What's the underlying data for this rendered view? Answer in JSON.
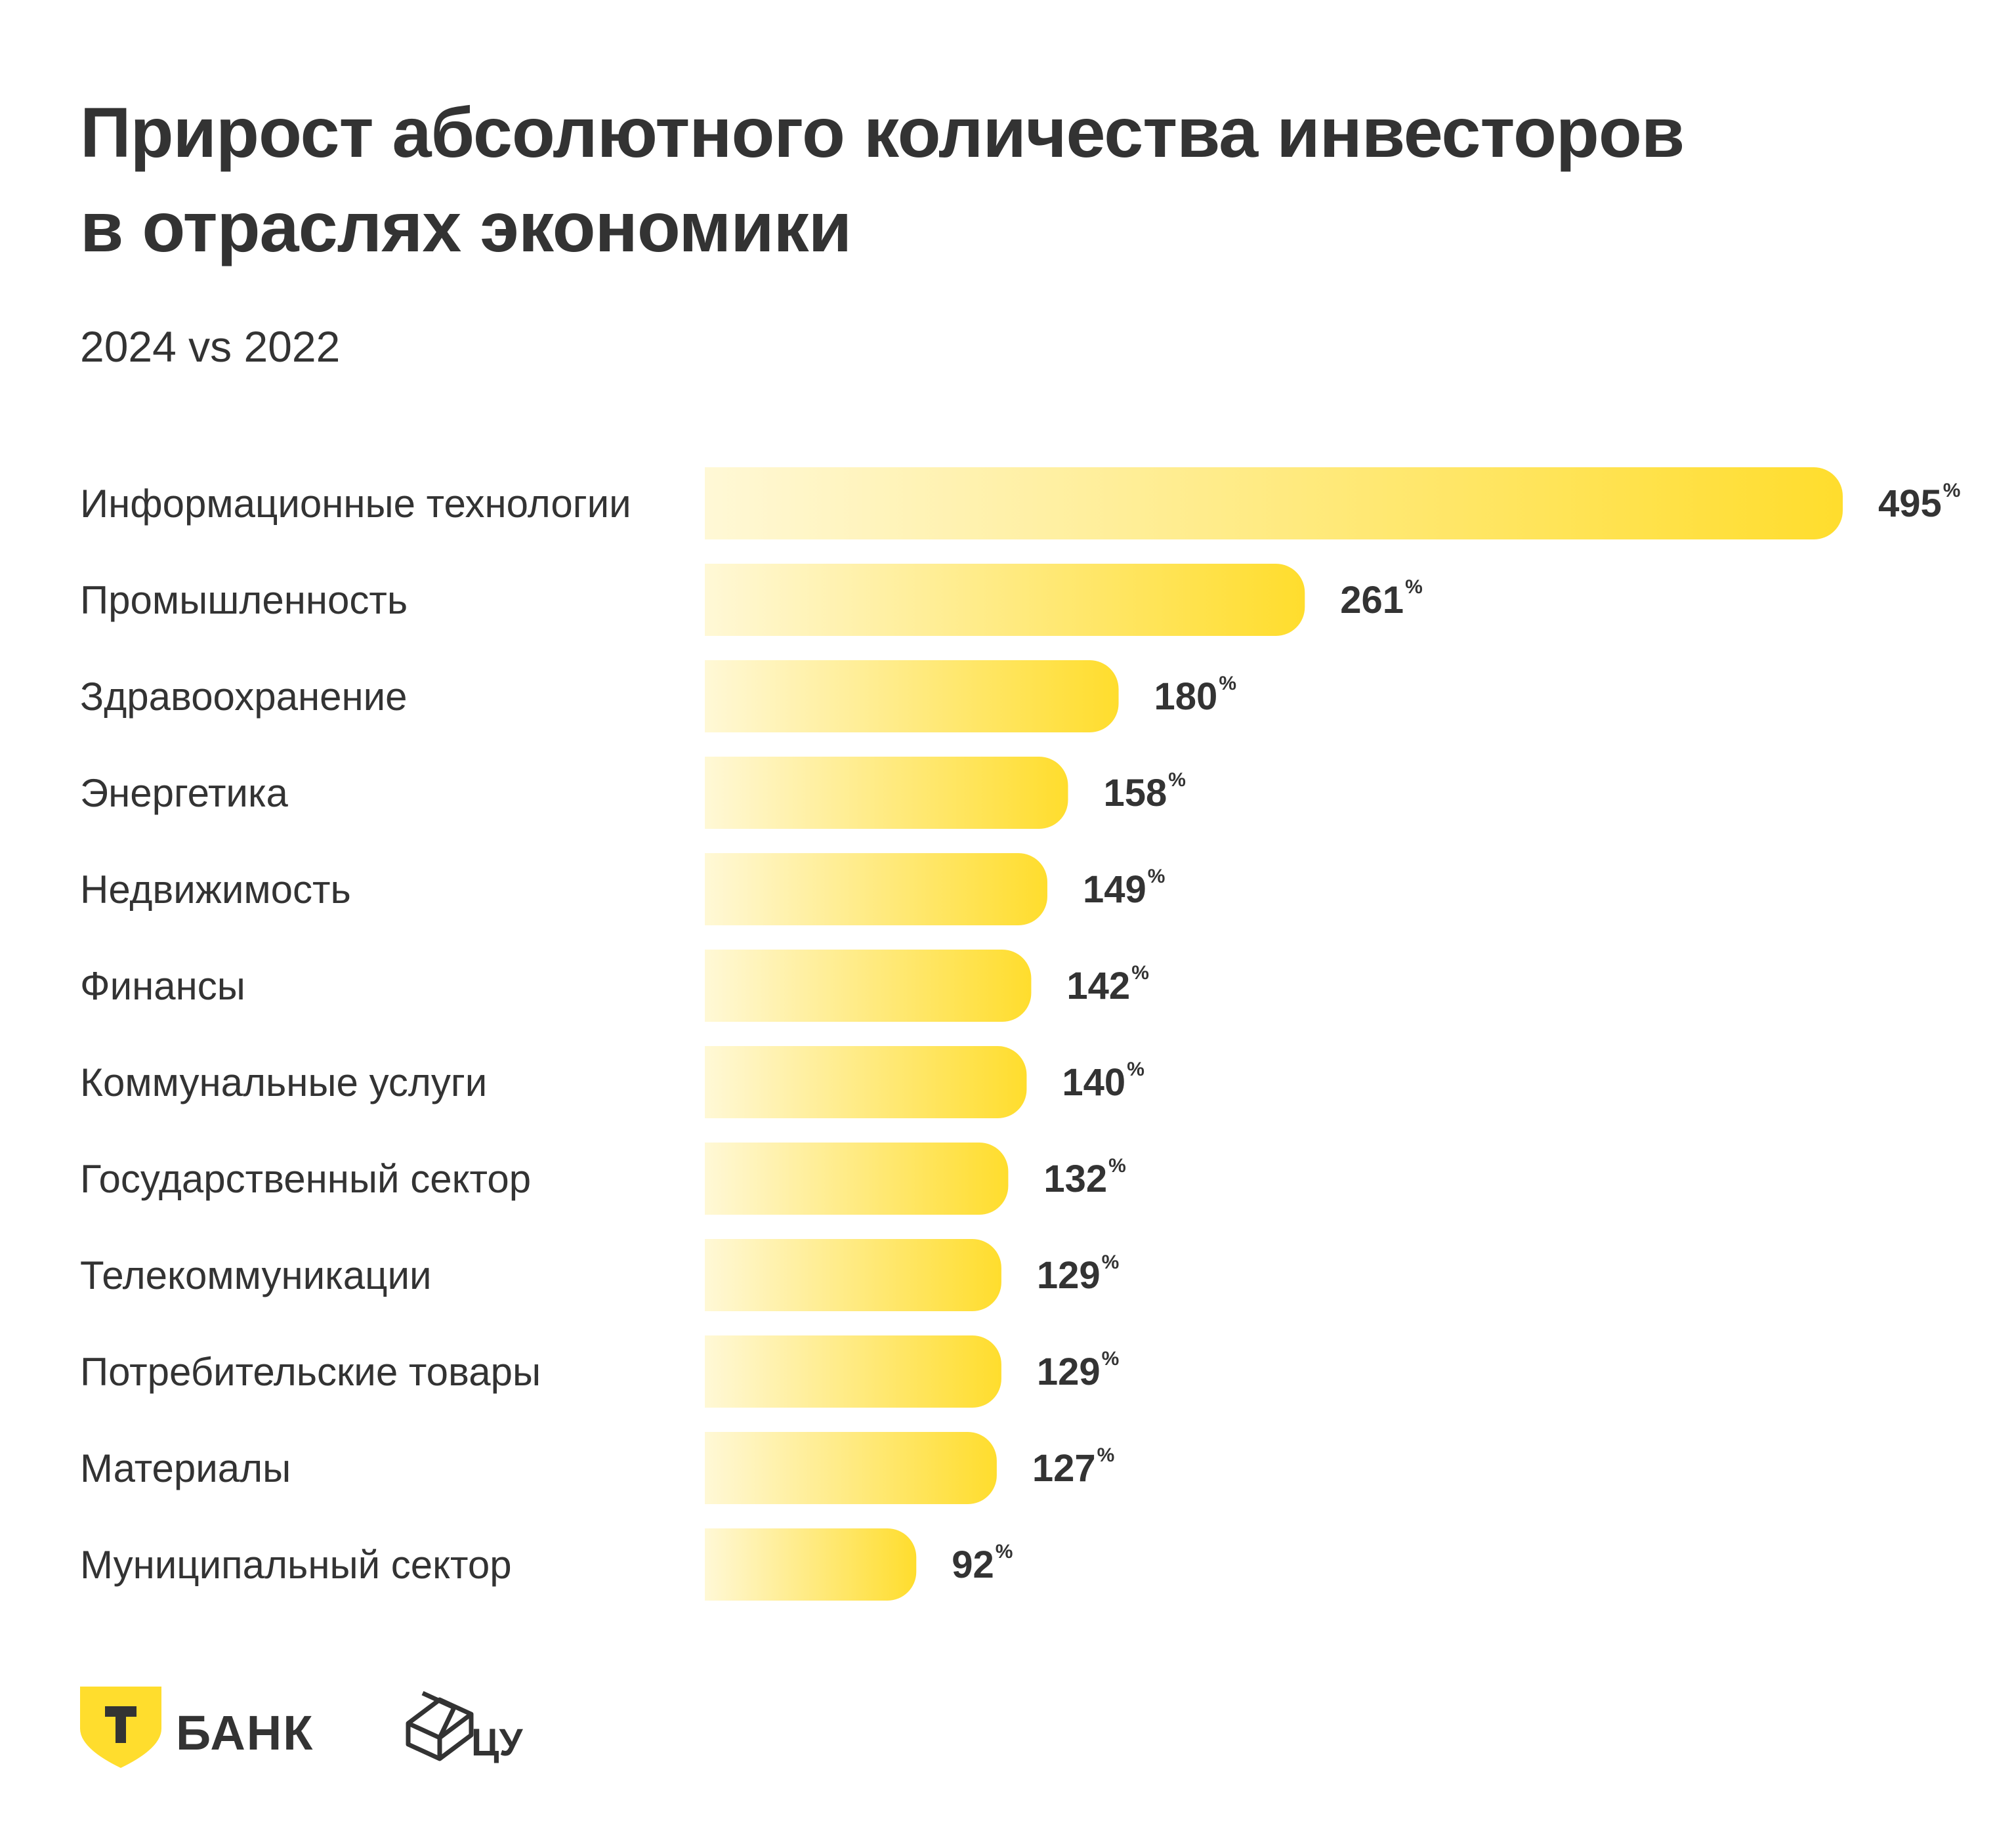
{
  "title_lines": [
    "Прирост абсолютного количества инвесторов",
    "в отраслях экономики"
  ],
  "subtitle": "2024 vs 2022",
  "colors": {
    "bar_start": "#FFF8D6",
    "bar_end": "#FFDD2D",
    "text": "#333333",
    "logo_shield": "#FFDD2D"
  },
  "chart_data": {
    "type": "bar",
    "orientation": "horizontal",
    "categories": [
      "Информационные технологии",
      "Промышленность",
      "Здравоохранение",
      "Энергетика",
      "Недвижимость",
      "Финансы",
      "Коммунальные услуги",
      " Государственный сектор",
      "Телекоммуникации",
      "Потребительские товары",
      "Материалы",
      "Муниципальный сектор"
    ],
    "values": [
      495,
      261,
      180,
      158,
      149,
      142,
      140,
      132,
      129,
      129,
      127,
      92
    ],
    "value_suffix": "%",
    "title": "Прирост абсолютного количества инвесторов в отраслях экономики",
    "subtitle": "2024 vs 2022",
    "xlabel": "",
    "ylabel": "",
    "grid": false,
    "legend": "none"
  },
  "logos": {
    "bank_icon": "t-bank-shield-icon",
    "bank_letter": "Т",
    "bank_name": "БАНК",
    "cu_icon": "cu-cube-icon",
    "cu_name": "ЦУ"
  }
}
